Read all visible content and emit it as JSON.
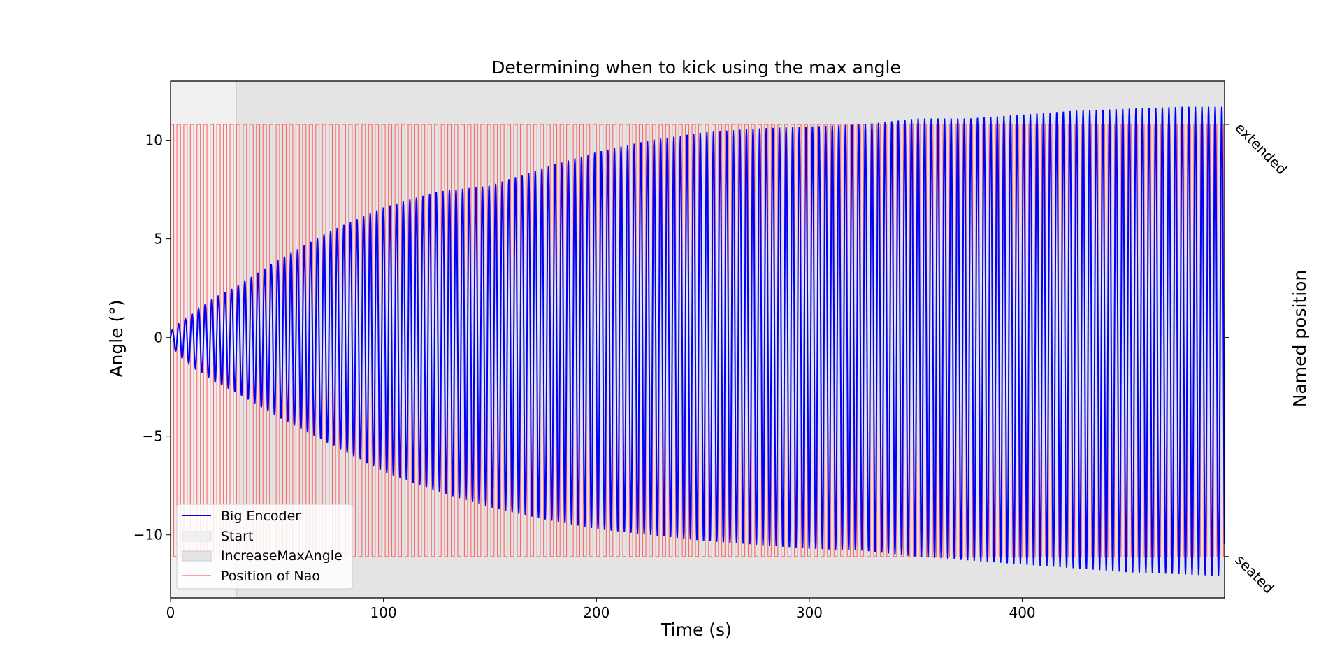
{
  "chart_data": {
    "type": "line",
    "title": "Determining when to kick using the max angle",
    "xlabel": "Time (s)",
    "ylabel": "Angle (°)",
    "ylabel_right": "Named position",
    "xlim": [
      0,
      495
    ],
    "ylim": [
      -13.2,
      13.0
    ],
    "xticks": [
      0,
      100,
      200,
      300,
      400
    ],
    "xtick_labels": [
      "0",
      "100",
      "200",
      "300",
      "400"
    ],
    "yticks": [
      -10,
      -5,
      0,
      5,
      10
    ],
    "ytick_labels": [
      "−10",
      "−5",
      "0",
      "5",
      "10"
    ],
    "right_ticks": [
      {
        "value": 10.8,
        "label": "extended"
      },
      {
        "value": -11.1,
        "label": "seated"
      }
    ],
    "grid": false,
    "legend_position": "lower-left",
    "phases": [
      {
        "name": "Start",
        "x_start": 0,
        "x_end": 31,
        "color": "#f0f0f0"
      },
      {
        "name": "IncreaseMaxAngle",
        "x_start": 31,
        "x_end": 495,
        "color": "#e4e4e4"
      }
    ],
    "series": [
      {
        "name": "Big Encoder",
        "color": "#0000ff",
        "kind": "oscillation",
        "period_s": 3.1,
        "amplitude_envelope": {
          "t": [
            0,
            5,
            10,
            20,
            31,
            50,
            75,
            100,
            125,
            150,
            175,
            200,
            225,
            250,
            275,
            300,
            325,
            350,
            375,
            400,
            425,
            450,
            475,
            495
          ],
          "max": [
            0.3,
            0.8,
            1.2,
            2.0,
            2.6,
            3.9,
            5.4,
            6.6,
            7.4,
            7.7,
            8.6,
            9.4,
            10.0,
            10.4,
            10.6,
            10.7,
            10.8,
            11.1,
            11.1,
            11.3,
            11.5,
            11.6,
            11.7,
            11.7
          ],
          "min": [
            -0.4,
            -1.0,
            -1.4,
            -2.2,
            -2.8,
            -4.0,
            -5.4,
            -6.8,
            -7.8,
            -8.6,
            -9.2,
            -9.7,
            -10.0,
            -10.3,
            -10.5,
            -10.7,
            -10.8,
            -11.1,
            -11.3,
            -11.5,
            -11.7,
            -11.9,
            -12.0,
            -12.1
          ]
        }
      },
      {
        "name": "Position of Nao",
        "color": "#ff6666",
        "kind": "step",
        "levels": {
          "high": 10.8,
          "low": -11.1
        },
        "switch_times_s": [
          0,
          1.5,
          3.0,
          4.7,
          6.2,
          7.8,
          9.3,
          10.9,
          12.4,
          14.0,
          15.5,
          17.1,
          18.6,
          20.2,
          21.7,
          23.3,
          24.8,
          26.4,
          27.9,
          29.5,
          31.0,
          32.6,
          34.1,
          35.7,
          37.2,
          38.8,
          40.3,
          41.9,
          43.4,
          45.0,
          46.5,
          48.1,
          49.6,
          51.2,
          52.7,
          54.3,
          55.8,
          57.4,
          58.9,
          60.5,
          62.0,
          63.6,
          65.1,
          66.7,
          68.2,
          69.8,
          71.3,
          72.9,
          74.4,
          76.0,
          77.5,
          79.1,
          80.6,
          82.2,
          83.7,
          85.3,
          86.8,
          88.4,
          89.9,
          91.5,
          93.0,
          94.6,
          96.1,
          97.7,
          99.2,
          100.8,
          102.3,
          103.9,
          105.4,
          107.0,
          108.5,
          110.1,
          111.6,
          113.2,
          114.7,
          116.3,
          117.8,
          119.4,
          120.9,
          122.5,
          124.0,
          125.6,
          127.1,
          128.7,
          130.2,
          131.8,
          133.3,
          134.9,
          136.4,
          138.0,
          139.5,
          141.1,
          142.6,
          144.2,
          145.7,
          147.3,
          148.8,
          150.4,
          151.9,
          153.5,
          155.0,
          156.6,
          158.1,
          159.7,
          161.2,
          162.8,
          164.3,
          165.9,
          167.4,
          169.0,
          170.5,
          172.1,
          173.6,
          175.2,
          176.7,
          178.3,
          179.8,
          181.4,
          182.9,
          184.5,
          186.0,
          187.6,
          189.1,
          190.7,
          192.2,
          193.8,
          195.3,
          196.9,
          198.4,
          200.0,
          201.5,
          203.1,
          204.6,
          206.2,
          207.7,
          209.3,
          210.8,
          212.4,
          213.9,
          215.5,
          217.0,
          218.6,
          220.1,
          221.7,
          223.2,
          224.8,
          226.3,
          227.9,
          229.4,
          231.0,
          232.5,
          234.1,
          235.6,
          237.2,
          238.7,
          240.3,
          241.8,
          243.4,
          244.9,
          246.5,
          248.0,
          249.6,
          251.1,
          252.7,
          254.2,
          255.8,
          257.3,
          258.9,
          260.4,
          262.0,
          263.5,
          265.1,
          266.6,
          268.2,
          269.7,
          271.3,
          272.8,
          274.4,
          275.9,
          277.5,
          279.0,
          280.6,
          282.1,
          283.7,
          285.2,
          286.8,
          288.3,
          289.9,
          291.4,
          293.0,
          294.5,
          296.1,
          297.6,
          299.2,
          300.7,
          302.3,
          303.8,
          305.4,
          306.9,
          308.5,
          310.0,
          311.6,
          313.1,
          314.7,
          316.2,
          317.8,
          319.3,
          320.9,
          322.4,
          324.0,
          325.5,
          327.1,
          328.6,
          330.2,
          331.7,
          333.3,
          334.8,
          336.4,
          337.9,
          339.5,
          341.0,
          342.6,
          344.1,
          345.7,
          347.2,
          348.8,
          350.3,
          351.9,
          353.4,
          355.0,
          356.5,
          358.1,
          359.6,
          361.2,
          362.7,
          364.3,
          365.8,
          367.4,
          368.9,
          370.5,
          372.0,
          373.6,
          375.1,
          376.7,
          378.2,
          379.8,
          381.3,
          382.9,
          384.4,
          386.0,
          387.5,
          389.1,
          390.6,
          392.2,
          393.7,
          395.3,
          396.8,
          398.4,
          399.9,
          401.5,
          403.0,
          404.6,
          406.1,
          407.7,
          409.2,
          410.8,
          412.3,
          413.9,
          415.4,
          417.0,
          418.5,
          420.1,
          421.6,
          423.2,
          424.7,
          426.3,
          427.8,
          429.4,
          430.9,
          432.5,
          434.0,
          435.6,
          437.1,
          438.7,
          440.2,
          441.8,
          443.3,
          444.9,
          446.4,
          448.0,
          449.5,
          451.1,
          452.6,
          454.2,
          455.7,
          457.3,
          458.8,
          460.4,
          461.9,
          463.5,
          465.0,
          466.6,
          468.1,
          469.7,
          471.2,
          472.8,
          474.3,
          475.9,
          477.4,
          479.0,
          480.5,
          482.1,
          483.6,
          485.2,
          486.7,
          488.3,
          489.8,
          491.4,
          492.9,
          494.5
        ]
      }
    ]
  }
}
